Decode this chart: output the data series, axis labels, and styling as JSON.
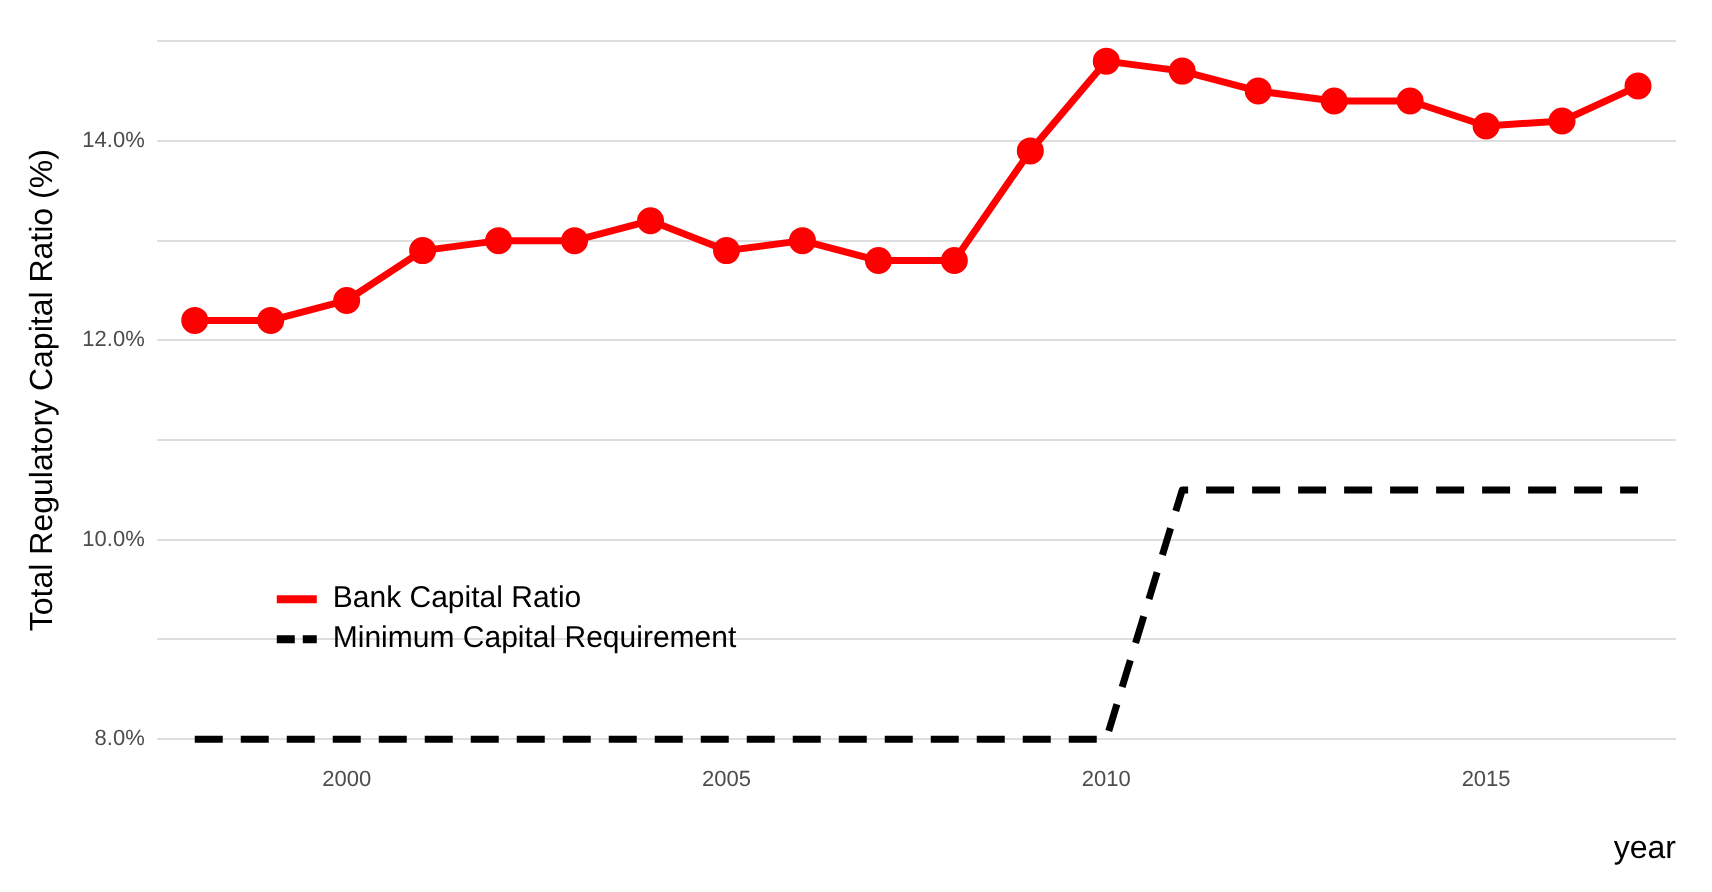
{
  "chart_data": {
    "type": "line",
    "xlabel": "year",
    "ylabel": "Total Regulatory Capital Ratio (%)",
    "xlim": [
      1997.5,
      2017.5
    ],
    "xticks": [
      2000,
      2005,
      2010,
      2015
    ],
    "ylim": [
      8,
      15
    ],
    "yticks": [
      {
        "value": 8,
        "label": "8.0%"
      },
      {
        "value": 9,
        "label": null
      },
      {
        "value": 10,
        "label": "10.0%"
      },
      {
        "value": 11,
        "label": null
      },
      {
        "value": 12,
        "label": "12.0%"
      },
      {
        "value": 13,
        "label": null
      },
      {
        "value": 14,
        "label": "14.0%"
      },
      {
        "value": 15,
        "label": null
      }
    ],
    "grid": "y",
    "legend": "bottom left",
    "series": [
      {
        "name": "Bank Capital Ratio",
        "color": "#ff0000",
        "marker": "circle",
        "line_style": "solid",
        "x": [
          1998,
          1999,
          2000,
          2001,
          2002,
          2003,
          2004,
          2005,
          2006,
          2007,
          2008,
          2009,
          2010,
          2011,
          2012,
          2013,
          2014,
          2015,
          2016,
          2017
        ],
        "values": [
          12.2,
          12.2,
          12.4,
          12.9,
          13.0,
          13.0,
          13.2,
          12.9,
          13.0,
          12.8,
          12.8,
          13.9,
          14.8,
          14.7,
          14.5,
          14.4,
          14.4,
          14.15,
          14.2,
          14.55
        ]
      },
      {
        "name": "Minimum Capital Requirement",
        "color": "#000000",
        "marker": "none",
        "line_style": "dashed",
        "x": [
          1998,
          1999,
          2000,
          2001,
          2002,
          2003,
          2004,
          2005,
          2006,
          2007,
          2008,
          2009,
          2010,
          2011,
          2012,
          2013,
          2014,
          2015,
          2016,
          2017
        ],
        "values": [
          8,
          8,
          8,
          8,
          8,
          8,
          8,
          8,
          8,
          8,
          8,
          8,
          8,
          10.5,
          10.5,
          10.5,
          10.5,
          10.5,
          10.5,
          10.5
        ]
      }
    ]
  }
}
